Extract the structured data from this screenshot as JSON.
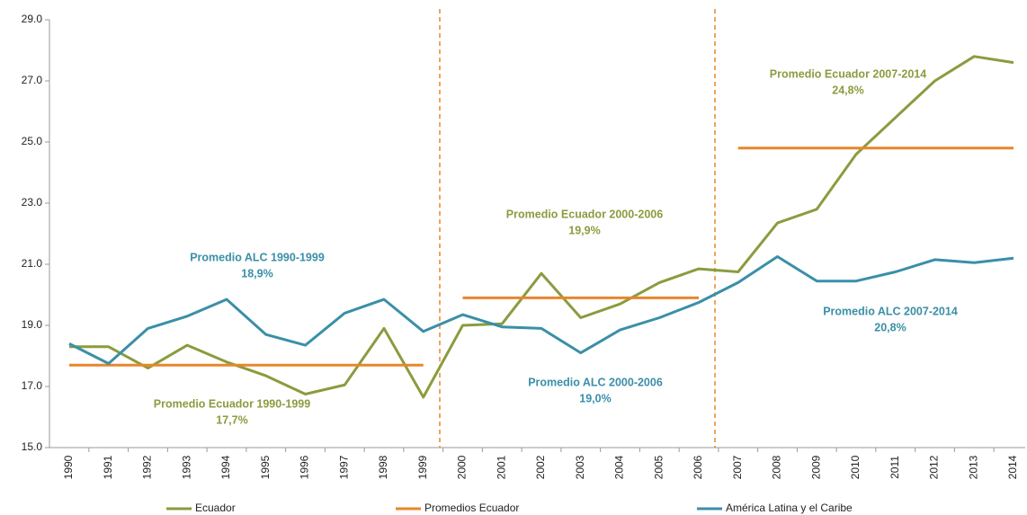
{
  "chart_data": {
    "type": "line",
    "categories": [
      "1990",
      "1991",
      "1992",
      "1993",
      "1994",
      "1995",
      "1996",
      "1997",
      "1998",
      "1999",
      "2000",
      "2001",
      "2002",
      "2003",
      "2004",
      "2005",
      "2006",
      "2007",
      "2008",
      "2009",
      "2010",
      "2011",
      "2012",
      "2013",
      "2014"
    ],
    "series": [
      {
        "name": "Ecuador",
        "color": "#8a9c3e",
        "values": [
          18.3,
          18.3,
          17.6,
          18.35,
          17.8,
          17.35,
          16.75,
          17.05,
          18.9,
          16.65,
          19.0,
          19.05,
          20.7,
          19.25,
          19.7,
          20.4,
          20.85,
          20.75,
          22.35,
          22.8,
          24.6,
          25.8,
          27.0,
          27.8,
          27.6
        ]
      },
      {
        "name": "Promedios Ecuador",
        "color": "#e8862c",
        "values": [
          17.7,
          17.7,
          17.7,
          17.7,
          17.7,
          17.7,
          17.7,
          17.7,
          17.7,
          17.7,
          19.9,
          19.9,
          19.9,
          19.9,
          19.9,
          19.9,
          19.9,
          24.8,
          24.8,
          24.8,
          24.8,
          24.8,
          24.8,
          24.8,
          24.8
        ]
      },
      {
        "name": "América Latina y el Caribe",
        "color": "#3a8fa8",
        "values": [
          18.4,
          17.75,
          18.9,
          19.3,
          19.85,
          18.7,
          18.35,
          19.4,
          19.85,
          18.8,
          19.35,
          18.95,
          18.9,
          18.1,
          18.85,
          19.25,
          19.75,
          20.4,
          21.25,
          20.45,
          20.45,
          20.75,
          21.15,
          21.05,
          21.2
        ]
      }
    ],
    "ylim": [
      15,
      29
    ],
    "yticks": [
      {
        "value": 15,
        "label": "15.0"
      },
      {
        "value": 17,
        "label": "17.0"
      },
      {
        "value": 19,
        "label": "19.0"
      },
      {
        "value": 21,
        "label": "21.0"
      },
      {
        "value": 23,
        "label": "23.0"
      },
      {
        "value": 25,
        "label": "25.0"
      },
      {
        "value": 27,
        "label": "27.0"
      },
      {
        "value": 29,
        "label": "29.0"
      }
    ],
    "annotations": [
      {
        "lines": [
          "Promedio ALC  1990-1999",
          "18,9%"
        ],
        "color": "#3a8fa8"
      },
      {
        "lines": [
          "Promedio Ecuador  1990-1999",
          "17,7%"
        ],
        "color": "#8a9c3e"
      },
      {
        "lines": [
          "Promedio Ecuador  2000-2006",
          "19,9%"
        ],
        "color": "#8a9c3e"
      },
      {
        "lines": [
          "Promedio ALC  2000-2006",
          "19,0%"
        ],
        "color": "#3a8fa8"
      },
      {
        "lines": [
          "Promedio Ecuador  2007-2014",
          "24,8%"
        ],
        "color": "#8a9c3e"
      },
      {
        "lines": [
          "Promedio ALC  2007-2014",
          "20,8%"
        ],
        "color": "#3a8fa8"
      }
    ],
    "legend": "bottom"
  }
}
